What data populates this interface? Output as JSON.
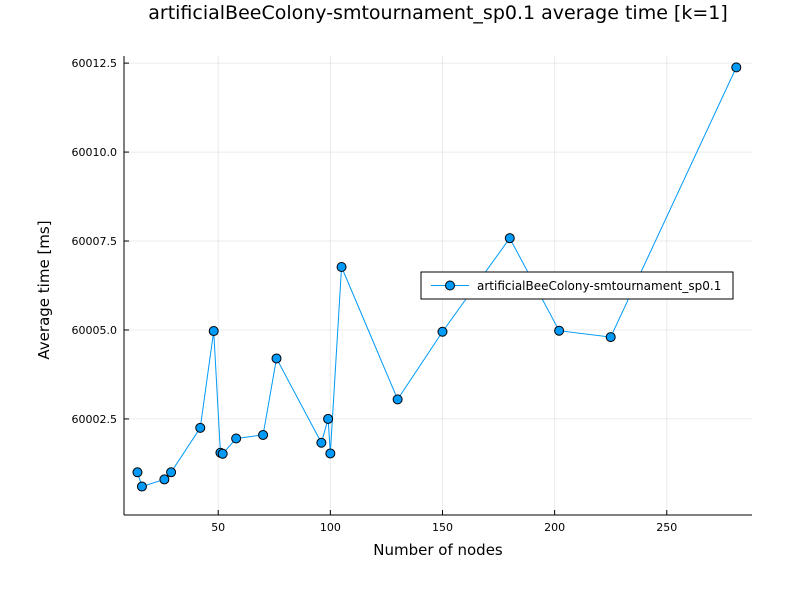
{
  "chart_data": {
    "type": "line",
    "title": "artificialBeeColony-smtournament_sp0.1 average time [k=1]",
    "xlabel": "Number of nodes",
    "ylabel": "Average time [ms]",
    "xlim": [
      8,
      288
    ],
    "ylim": [
      59999.8,
      60012.7
    ],
    "xticks": [
      50,
      100,
      150,
      200,
      250
    ],
    "yticks": [
      60002.5,
      60005.0,
      60007.5,
      60010.0,
      60012.5
    ],
    "xtick_labels": [
      "50",
      "100",
      "150",
      "200",
      "250"
    ],
    "ytick_labels": [
      "60002.5",
      "60005.0",
      "60007.5",
      "60010.0",
      "60012.5"
    ],
    "grid": true,
    "legend_position": "right",
    "series": [
      {
        "name": "artificialBeeColony-smtournament_sp0.1",
        "color": "#009af9",
        "marker": "circle",
        "points": [
          [
            14,
            60001.0
          ],
          [
            16,
            60000.6
          ],
          [
            26,
            60000.8
          ],
          [
            29,
            60001.0
          ],
          [
            42,
            60002.25
          ],
          [
            48,
            60004.97
          ],
          [
            51,
            60001.55
          ],
          [
            52,
            60001.52
          ],
          [
            58,
            60001.95
          ],
          [
            70,
            60002.05
          ],
          [
            76,
            60004.2
          ],
          [
            96,
            60001.83
          ],
          [
            99,
            60002.5
          ],
          [
            100,
            60001.53
          ],
          [
            105,
            60006.77
          ],
          [
            130,
            60003.05
          ],
          [
            150,
            60004.95
          ],
          [
            180,
            60007.58
          ],
          [
            202,
            60004.98
          ],
          [
            225,
            60004.8
          ],
          [
            281,
            60012.38
          ]
        ]
      }
    ]
  }
}
